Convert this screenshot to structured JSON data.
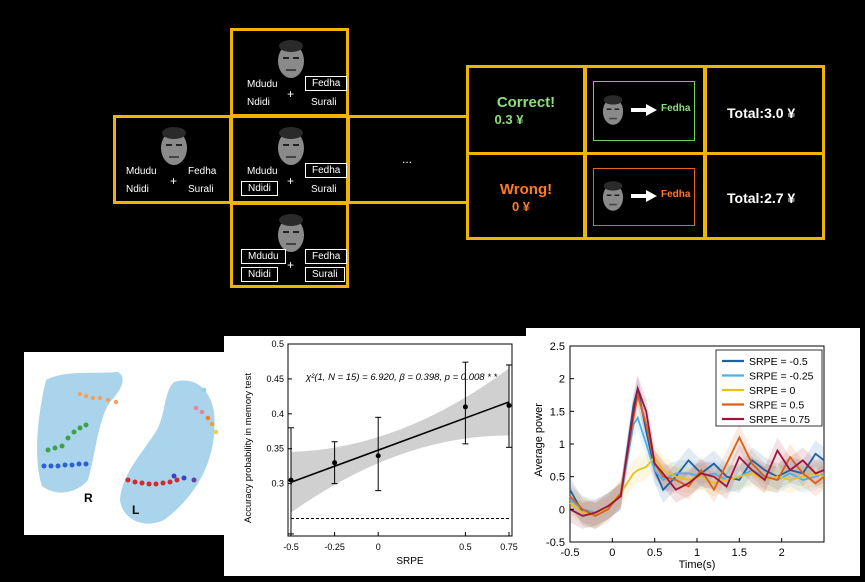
{
  "task": {
    "words": {
      "mdudu": "Mdudu",
      "fedha": "Fedha",
      "ndidi": "Ndidi",
      "surali": "Surali"
    },
    "plus": "+",
    "ellipsis": "...",
    "feedback": {
      "correct": {
        "line1": "Correct!",
        "line2": "0.3 ¥",
        "color": "#8be07a",
        "choice": "Fedha",
        "total": "Total:3.0 ¥"
      },
      "wrong": {
        "line1": "Wrong!",
        "line2": "0 ¥",
        "color": "#ff7a2a",
        "choice": "Fedha",
        "total": "Total:2.7 ¥"
      }
    }
  },
  "brain": {
    "labels": {
      "right": "R",
      "left": "L"
    }
  },
  "chart_data": [
    {
      "type": "line",
      "ylabel": "Accuracy probability in memory test",
      "xlabel": "SRPE",
      "annotation": "χ²(1, N = 15) = 6.920,  β = 0.398, p = 0.008 * *",
      "x": [
        -0.5,
        -0.25,
        0,
        0.5,
        0.75
      ],
      "x_ticks": [
        "-0.5",
        "-0.25",
        "0",
        "0.5",
        "0.75"
      ],
      "y_ticks": [
        "0.3",
        "0.35",
        "0.4",
        "0.45",
        "0.5"
      ],
      "ylim": [
        0.225,
        0.5
      ],
      "series": [
        {
          "values": [
            0.305,
            0.33,
            0.34,
            0.41,
            0.412
          ],
          "err_low": [
            0.228,
            0.3,
            0.29,
            0.357,
            0.352
          ],
          "err_high": [
            0.38,
            0.36,
            0.395,
            0.474,
            0.47
          ]
        }
      ],
      "fit": {
        "y_start": 0.302,
        "y_end": 0.417
      },
      "baseline": 0.25
    },
    {
      "type": "line",
      "xlabel": "Time(s)",
      "ylabel": "Average power",
      "x_ticks": [
        "-0.5",
        "0",
        "0.5",
        "1",
        "1.5",
        "2"
      ],
      "y_ticks": [
        "-0.5",
        "0",
        "0.5",
        "1",
        "1.5",
        "2",
        "2.5"
      ],
      "xlim": [
        -0.5,
        2.5
      ],
      "ylim": [
        -0.5,
        2.5
      ],
      "series": [
        {
          "name": "SRPE = -0.5",
          "color": "#1f5fa6",
          "x": [
            -0.5,
            -0.35,
            -0.2,
            -0.05,
            0.1,
            0.25,
            0.3,
            0.4,
            0.5,
            0.6,
            0.75,
            0.9,
            1.05,
            1.2,
            1.35,
            1.5,
            1.65,
            1.8,
            1.95,
            2.1,
            2.25,
            2.4,
            2.5
          ],
          "y": [
            0.3,
            -0.05,
            -0.1,
            0.05,
            0.2,
            1.6,
            1.85,
            1.2,
            0.6,
            0.3,
            0.5,
            0.75,
            0.55,
            0.7,
            0.5,
            0.45,
            0.75,
            0.6,
            0.5,
            0.6,
            0.55,
            0.85,
            0.75
          ]
        },
        {
          "name": "SRPE = -0.25",
          "color": "#4fb0e8",
          "x": [
            -0.5,
            -0.35,
            -0.2,
            -0.05,
            0.1,
            0.25,
            0.3,
            0.4,
            0.5,
            0.6,
            0.75,
            0.9,
            1.05,
            1.2,
            1.35,
            1.5,
            1.65,
            1.8,
            1.95,
            2.1,
            2.25,
            2.4,
            2.5
          ],
          "y": [
            0.15,
            0.0,
            -0.05,
            0.05,
            0.2,
            1.3,
            1.4,
            1.0,
            0.6,
            0.45,
            0.55,
            0.55,
            0.5,
            0.55,
            0.45,
            0.5,
            0.6,
            0.5,
            0.45,
            0.55,
            0.45,
            0.5,
            0.55
          ]
        },
        {
          "name": "SRPE = 0",
          "color": "#e8c020",
          "x": [
            -0.5,
            -0.35,
            -0.2,
            -0.05,
            0.1,
            0.25,
            0.3,
            0.4,
            0.5,
            0.6,
            0.75,
            0.9,
            1.05,
            1.2,
            1.35,
            1.5,
            1.65,
            1.8,
            1.95,
            2.1,
            2.25,
            2.4,
            2.5
          ],
          "y": [
            0.1,
            -0.05,
            -0.1,
            0.05,
            0.25,
            0.55,
            0.6,
            0.65,
            0.8,
            0.6,
            0.5,
            0.45,
            0.5,
            0.4,
            0.45,
            0.5,
            0.55,
            0.45,
            0.5,
            0.45,
            0.5,
            0.55,
            0.5
          ]
        },
        {
          "name": "SRPE = 0.5",
          "color": "#d9601a",
          "x": [
            -0.5,
            -0.35,
            -0.2,
            -0.05,
            0.1,
            0.25,
            0.3,
            0.4,
            0.5,
            0.6,
            0.75,
            0.9,
            1.05,
            1.2,
            1.35,
            1.5,
            1.65,
            1.8,
            1.95,
            2.1,
            2.25,
            2.4,
            2.5
          ],
          "y": [
            0.2,
            0.0,
            -0.1,
            0.0,
            0.25,
            1.4,
            1.75,
            1.3,
            0.7,
            0.5,
            0.45,
            0.35,
            0.6,
            0.3,
            0.7,
            1.1,
            0.7,
            0.5,
            0.45,
            0.8,
            0.55,
            0.4,
            0.5
          ]
        },
        {
          "name": "SRPE = 0.75",
          "color": "#a0143c",
          "x": [
            -0.5,
            -0.35,
            -0.2,
            -0.05,
            0.1,
            0.25,
            0.3,
            0.4,
            0.5,
            0.6,
            0.75,
            0.9,
            1.05,
            1.2,
            1.35,
            1.5,
            1.65,
            1.8,
            1.95,
            2.1,
            2.25,
            2.4,
            2.5
          ],
          "y": [
            0.0,
            -0.1,
            -0.05,
            0.05,
            0.2,
            1.5,
            1.85,
            1.5,
            0.7,
            0.55,
            0.3,
            0.4,
            0.55,
            0.5,
            0.35,
            0.8,
            0.6,
            0.45,
            0.9,
            0.6,
            0.75,
            0.55,
            0.6
          ]
        }
      ]
    }
  ]
}
